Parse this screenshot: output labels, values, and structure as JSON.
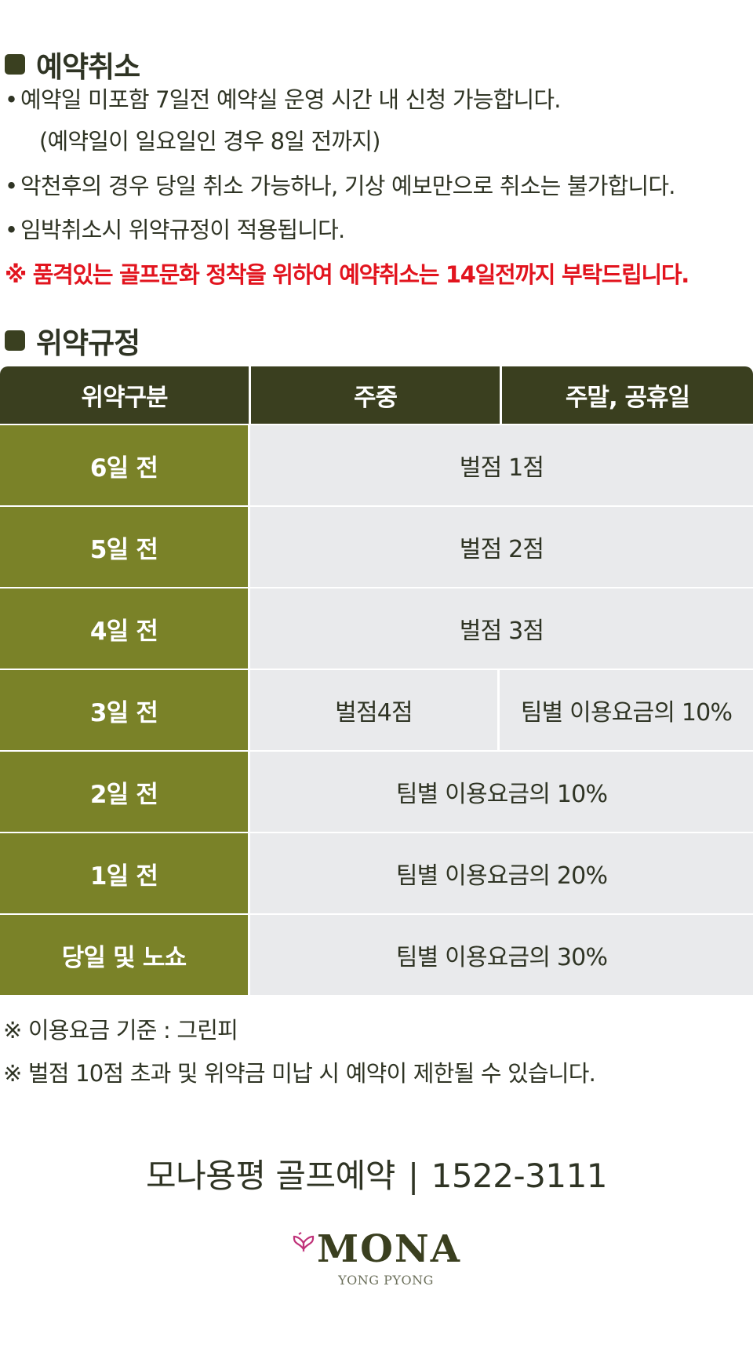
{
  "cancel_section": {
    "title": "예약취소",
    "bullets": [
      "예약일 미포함  7일전 예약실 운영 시간 내 신청 가능합니다.",
      "악천후의 경우 당일 취소 가능하나, 기상 예보만으로 취소는 불가합니다.",
      "임박취소시 위약규정이 적용됩니다."
    ],
    "bullet_dot": "•",
    "bullet1_indent": "(예약일이 일요일인 경우 8일 전까지)",
    "notice": "※ 품격있는 골프문화 정착을 위하여 예약취소는 14일전까지 부탁드립니다.",
    "notice_color": "#e2141e"
  },
  "penalty_section": {
    "title": "위약규정",
    "headers": [
      "위약구분",
      "주중",
      "주말, 공휴일"
    ],
    "rows": [
      {
        "label": "6일 전",
        "value": "벌점 1점"
      },
      {
        "label": "5일 전",
        "value": "벌점 2점"
      },
      {
        "label": "4일 전",
        "value": "벌점 3점"
      },
      {
        "label": "3일 전",
        "weekday": "벌점4점",
        "weekend": "팀별 이용요금의 10%"
      },
      {
        "label": "2일 전",
        "value": "팀별 이용요금의 10%"
      },
      {
        "label": "1일 전",
        "value": "팀별 이용요금의 20%"
      },
      {
        "label": "당일 및 노쇼",
        "value": "팀별 이용요금의 30%"
      }
    ]
  },
  "notes": [
    "※ 이용요금 기준 : 그린피",
    "※ 벌점 10점 초과 및 위약금 미납 시 예약이 제한될 수 있습니다."
  ],
  "contact": {
    "label": "모나용평 골프예약",
    "separator": "|",
    "phone": "1522-3111"
  },
  "logo": {
    "word": "MONA",
    "sub": "YONG PYONG",
    "icon": "butterfly-logo-icon"
  },
  "colors": {
    "header_dark": "#3a3f1f",
    "row_label_olive": "#7a8228",
    "cell_bg": "#e9eaec",
    "accent_red": "#e2141e"
  }
}
